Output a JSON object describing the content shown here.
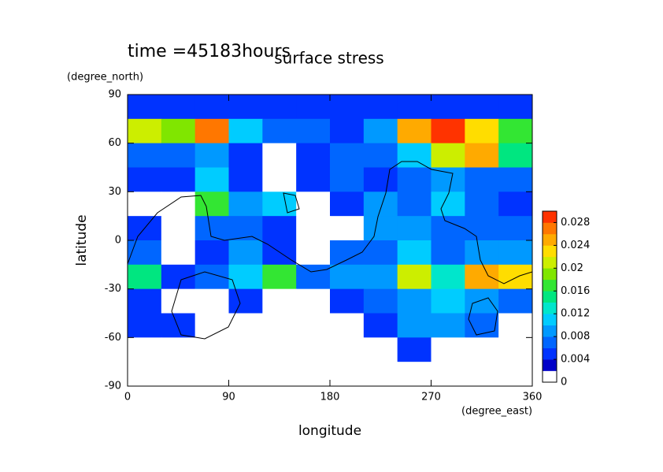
{
  "chart_data": {
    "type": "contour",
    "title": "surface stress",
    "subtitle": "time =45183hours",
    "x_label": "longitude",
    "x_unit": "(degree_east)",
    "y_label": "latitude",
    "y_unit": "(degree_north)",
    "xlim": [
      0,
      360
    ],
    "xticks": [
      0,
      90,
      180,
      270,
      360
    ],
    "ylim": [
      -90,
      90
    ],
    "yticks": [
      -90,
      -60,
      -30,
      0,
      30,
      60,
      90
    ],
    "x": [
      15,
      45,
      75,
      105,
      135,
      165,
      195,
      225,
      255,
      285,
      315,
      345
    ],
    "y": [
      82.5,
      67.5,
      52.5,
      37.5,
      22.5,
      7.5,
      -7.5,
      -22.5,
      -37.5,
      -52.5,
      -67.5,
      -82.5
    ],
    "z": [
      [
        0.004,
        0.004,
        0.004,
        0.004,
        0.004,
        0.004,
        0.004,
        0.004,
        0.004,
        0.004,
        0.004,
        0.004
      ],
      [
        0.02,
        0.018,
        0.026,
        0.01,
        0.006,
        0.006,
        0.004,
        0.008,
        0.024,
        0.028,
        0.022,
        0.016
      ],
      [
        0.006,
        0.006,
        0.008,
        0.004,
        0,
        0.004,
        0.006,
        0.006,
        0.01,
        0.02,
        0.024,
        0.014
      ],
      [
        0.004,
        0.004,
        0.01,
        0.004,
        0,
        0.004,
        0.006,
        0.004,
        0.006,
        0.008,
        0.006,
        0.006
      ],
      [
        0,
        0,
        0.016,
        0.008,
        0.01,
        0,
        0.004,
        0.008,
        0.006,
        0.01,
        0.006,
        0.004
      ],
      [
        0.004,
        0,
        0.006,
        0.006,
        0.004,
        0,
        0,
        0.008,
        0.008,
        0.006,
        0.006,
        0.006
      ],
      [
        0.006,
        0,
        0.004,
        0.008,
        0.004,
        0,
        0.006,
        0.006,
        0.01,
        0.006,
        0.008,
        0.008
      ],
      [
        0.014,
        0.004,
        0.006,
        0.01,
        0.016,
        0.006,
        0.008,
        0.008,
        0.02,
        0.012,
        0.024,
        0.022
      ],
      [
        0.004,
        0,
        0,
        0.004,
        0,
        0,
        0.004,
        0.006,
        0.008,
        0.01,
        0.008,
        0.006
      ],
      [
        0.004,
        0.004,
        0,
        0,
        0,
        0,
        0,
        0.004,
        0.008,
        0.008,
        0.006,
        0
      ],
      [
        0,
        0,
        0,
        0,
        0,
        0,
        0,
        0,
        0.004,
        0,
        0,
        0
      ],
      [
        0,
        0,
        0,
        0,
        0,
        0,
        0,
        0,
        0,
        0,
        0,
        0
      ]
    ],
    "colorbar": {
      "lim": [
        0,
        0.03
      ],
      "ticks": [
        0,
        0.004,
        0.008,
        0.012,
        0.016,
        0.02,
        0.024,
        0.028
      ],
      "colors": [
        "#ffffff",
        "#0000c8",
        "#0033ff",
        "#0066ff",
        "#0099ff",
        "#00ccff",
        "#00e6cc",
        "#00e680",
        "#33e633",
        "#80e600",
        "#ccee00",
        "#ffdd00",
        "#ffaa00",
        "#ff7700",
        "#ff3300"
      ]
    }
  }
}
